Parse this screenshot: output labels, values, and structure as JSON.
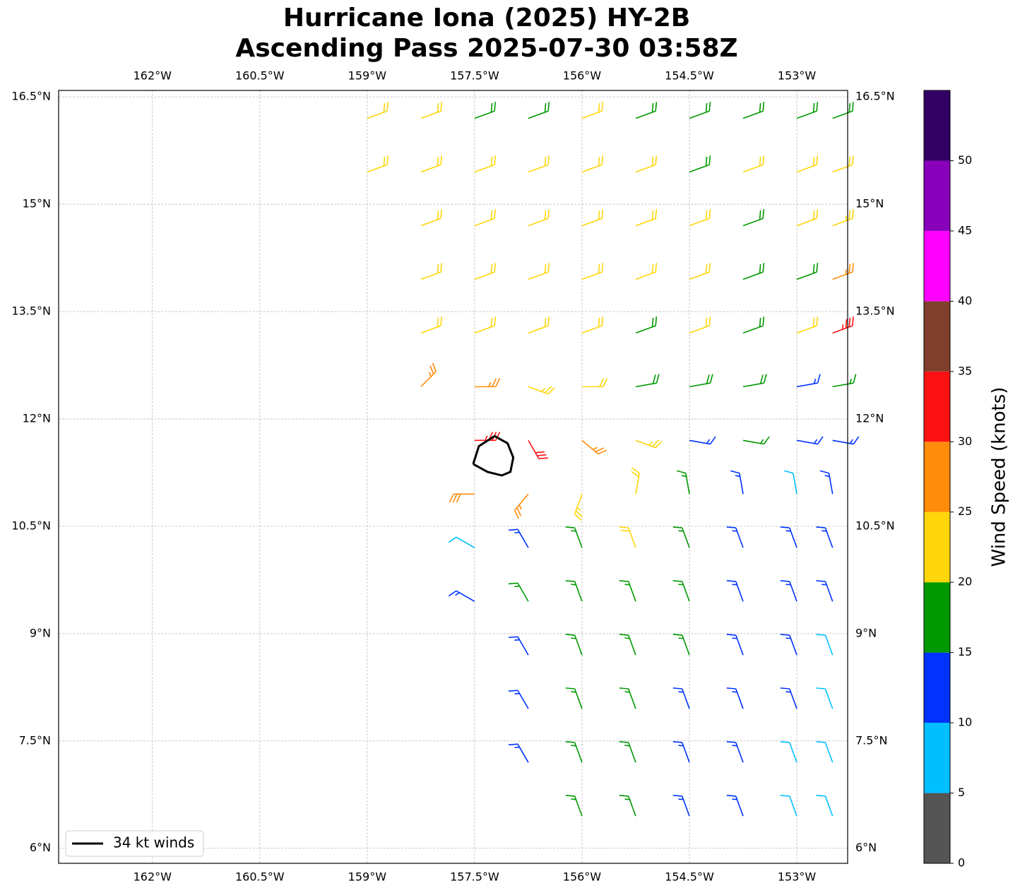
{
  "chart_data": {
    "type": "barbs",
    "title": [
      "Hurricane Iona (2025) HY-2B",
      "Ascending Pass 2025-07-30 03:58Z"
    ],
    "xlim": [
      -163.31,
      -152.29
    ],
    "ylim": [
      5.79,
      16.59
    ],
    "xticks": [
      {
        "value": -162,
        "label": "162°W"
      },
      {
        "value": -160.5,
        "label": "160.5°W"
      },
      {
        "value": -159,
        "label": "159°W"
      },
      {
        "value": -157.5,
        "label": "157.5°W"
      },
      {
        "value": -156,
        "label": "156°W"
      },
      {
        "value": -154.5,
        "label": "154.5°W"
      },
      {
        "value": -153,
        "label": "153°W"
      }
    ],
    "yticks": [
      {
        "value": 6,
        "label": "6°N"
      },
      {
        "value": 7.5,
        "label": "7.5°N"
      },
      {
        "value": 9,
        "label": "9°N"
      },
      {
        "value": 10.5,
        "label": "10.5°N"
      },
      {
        "value": 12,
        "label": "12°N"
      },
      {
        "value": 13.5,
        "label": "13.5°N"
      },
      {
        "value": 15,
        "label": "15°N"
      },
      {
        "value": 16.5,
        "label": "16.5°N"
      }
    ],
    "grid": true,
    "barbs": [
      [
        -159,
        16.2,
        22,
        70
      ],
      [
        -158.25,
        16.2,
        22,
        70
      ],
      [
        -157.5,
        16.2,
        18,
        70
      ],
      [
        -156.75,
        16.2,
        18,
        70
      ],
      [
        -156,
        16.2,
        22,
        70
      ],
      [
        -155.25,
        16.2,
        18,
        70
      ],
      [
        -154.5,
        16.2,
        18,
        70
      ],
      [
        -153.75,
        16.2,
        18,
        70
      ],
      [
        -153,
        16.2,
        18,
        70
      ],
      [
        -152.5,
        16.2,
        18,
        70
      ],
      [
        -159,
        15.45,
        22,
        70
      ],
      [
        -158.25,
        15.45,
        22,
        70
      ],
      [
        -157.5,
        15.45,
        22,
        70
      ],
      [
        -156.75,
        15.45,
        22,
        70
      ],
      [
        -156,
        15.45,
        22,
        70
      ],
      [
        -155.25,
        15.45,
        22,
        70
      ],
      [
        -154.5,
        15.45,
        18,
        70
      ],
      [
        -153.75,
        15.45,
        22,
        70
      ],
      [
        -153,
        15.45,
        22,
        70
      ],
      [
        -152.5,
        15.45,
        22,
        70
      ],
      [
        -158.25,
        14.7,
        22,
        70
      ],
      [
        -157.5,
        14.7,
        22,
        70
      ],
      [
        -156.75,
        14.7,
        22,
        70
      ],
      [
        -156,
        14.7,
        22,
        70
      ],
      [
        -155.25,
        14.7,
        22,
        70
      ],
      [
        -154.5,
        14.7,
        22,
        70
      ],
      [
        -153.75,
        14.7,
        18,
        70
      ],
      [
        -153,
        14.7,
        22,
        70
      ],
      [
        -152.5,
        14.7,
        23,
        70
      ],
      [
        -158.25,
        13.95,
        22,
        70
      ],
      [
        -157.5,
        13.95,
        22,
        70
      ],
      [
        -156.75,
        13.95,
        22,
        70
      ],
      [
        -156,
        13.95,
        22,
        70
      ],
      [
        -155.25,
        13.95,
        22,
        70
      ],
      [
        -154.5,
        13.95,
        22,
        70
      ],
      [
        -153.75,
        13.95,
        18,
        70
      ],
      [
        -153,
        13.95,
        18,
        70
      ],
      [
        -152.5,
        13.95,
        27,
        70
      ],
      [
        -158.25,
        13.2,
        22,
        70
      ],
      [
        -157.5,
        13.2,
        22,
        70
      ],
      [
        -156.75,
        13.2,
        22,
        70
      ],
      [
        -156,
        13.2,
        22,
        70
      ],
      [
        -155.25,
        13.2,
        18,
        70
      ],
      [
        -154.5,
        13.2,
        22,
        70
      ],
      [
        -153.75,
        13.2,
        18,
        70
      ],
      [
        -153,
        13.2,
        22,
        70
      ],
      [
        -152.5,
        13.2,
        33,
        70
      ],
      [
        -158.25,
        12.45,
        27,
        45
      ],
      [
        -157.5,
        12.45,
        27,
        90
      ],
      [
        -156.75,
        12.45,
        24,
        110
      ],
      [
        -156,
        12.45,
        22,
        90
      ],
      [
        -155.25,
        12.45,
        18,
        80
      ],
      [
        -154.5,
        12.45,
        18,
        80
      ],
      [
        -153.75,
        12.45,
        18,
        80
      ],
      [
        -153,
        12.45,
        13,
        80
      ],
      [
        -152.5,
        12.45,
        17,
        80
      ],
      [
        -157.5,
        11.7,
        33,
        90
      ],
      [
        -156.75,
        11.7,
        32,
        150
      ],
      [
        -156,
        11.7,
        27,
        130
      ],
      [
        -155.25,
        11.7,
        24,
        110
      ],
      [
        -154.5,
        11.7,
        13,
        100
      ],
      [
        -153.75,
        11.7,
        17,
        100
      ],
      [
        -153,
        11.7,
        13,
        100
      ],
      [
        -152.5,
        11.7,
        13,
        100
      ],
      [
        -157.5,
        10.95,
        28,
        270
      ],
      [
        -156.75,
        10.95,
        27,
        220
      ],
      [
        -156,
        10.95,
        24,
        200
      ],
      [
        -155.25,
        10.95,
        22,
        10
      ],
      [
        -154.5,
        10.95,
        17,
        350
      ],
      [
        -153.75,
        10.95,
        13,
        350
      ],
      [
        -153,
        10.95,
        8,
        350
      ],
      [
        -152.5,
        10.95,
        13,
        350
      ],
      [
        -157.5,
        10.2,
        8,
        300
      ],
      [
        -156.75,
        10.2,
        13,
        330
      ],
      [
        -156,
        10.2,
        17,
        340
      ],
      [
        -155.25,
        10.2,
        22,
        340
      ],
      [
        -154.5,
        10.2,
        17,
        340
      ],
      [
        -153.75,
        10.2,
        13,
        340
      ],
      [
        -153,
        10.2,
        13,
        340
      ],
      [
        -152.5,
        10.2,
        13,
        340
      ],
      [
        -157.5,
        9.45,
        13,
        300
      ],
      [
        -156.75,
        9.45,
        17,
        330
      ],
      [
        -156,
        9.45,
        17,
        340
      ],
      [
        -155.25,
        9.45,
        17,
        340
      ],
      [
        -154.5,
        9.45,
        17,
        340
      ],
      [
        -153.75,
        9.45,
        13,
        340
      ],
      [
        -153,
        9.45,
        13,
        340
      ],
      [
        -152.5,
        9.45,
        13,
        340
      ],
      [
        -156.75,
        8.7,
        13,
        330
      ],
      [
        -156,
        8.7,
        17,
        340
      ],
      [
        -155.25,
        8.7,
        17,
        340
      ],
      [
        -154.5,
        8.7,
        17,
        340
      ],
      [
        -153.75,
        8.7,
        13,
        340
      ],
      [
        -153,
        8.7,
        13,
        340
      ],
      [
        -152.5,
        8.7,
        8,
        340
      ],
      [
        -156.75,
        7.95,
        13,
        330
      ],
      [
        -156,
        7.95,
        17,
        340
      ],
      [
        -155.25,
        7.95,
        17,
        340
      ],
      [
        -154.5,
        7.95,
        13,
        340
      ],
      [
        -153.75,
        7.95,
        13,
        340
      ],
      [
        -153,
        7.95,
        13,
        340
      ],
      [
        -152.5,
        7.95,
        8,
        340
      ],
      [
        -156.75,
        7.2,
        13,
        330
      ],
      [
        -156,
        7.2,
        17,
        340
      ],
      [
        -155.25,
        7.2,
        17,
        340
      ],
      [
        -154.5,
        7.2,
        13,
        340
      ],
      [
        -153.75,
        7.2,
        13,
        340
      ],
      [
        -153,
        7.2,
        8,
        340
      ],
      [
        -152.5,
        7.2,
        8,
        340
      ],
      [
        -156,
        6.45,
        17,
        340
      ],
      [
        -155.25,
        6.45,
        17,
        340
      ],
      [
        -154.5,
        6.45,
        13,
        340
      ],
      [
        -153.75,
        6.45,
        13,
        340
      ],
      [
        -153,
        6.45,
        8,
        340
      ],
      [
        -152.5,
        6.45,
        8,
        340
      ]
    ],
    "contour_34kt": {
      "lon": [
        -157.52,
        -157.44,
        -157.22,
        -157.04,
        -156.96,
        -157.0,
        -157.12,
        -157.32,
        -157.52
      ],
      "lat": [
        11.37,
        11.62,
        11.76,
        11.66,
        11.46,
        11.26,
        11.21,
        11.26,
        11.37
      ],
      "color": "#000000"
    },
    "legend": {
      "label": "34 kt winds",
      "position": "lower left"
    },
    "colorbar": {
      "label": "Wind Speed (knots)",
      "clim": [
        0,
        55
      ],
      "ticks": [
        0,
        5,
        10,
        15,
        20,
        25,
        30,
        35,
        40,
        45,
        50
      ],
      "colors": [
        "#555555",
        "#00bfff",
        "#0033ff",
        "#009900",
        "#ffd60a",
        "#ff8c0a",
        "#ff1111",
        "#803f2c",
        "#ff00ff",
        "#8800bb",
        "#330066"
      ]
    }
  }
}
